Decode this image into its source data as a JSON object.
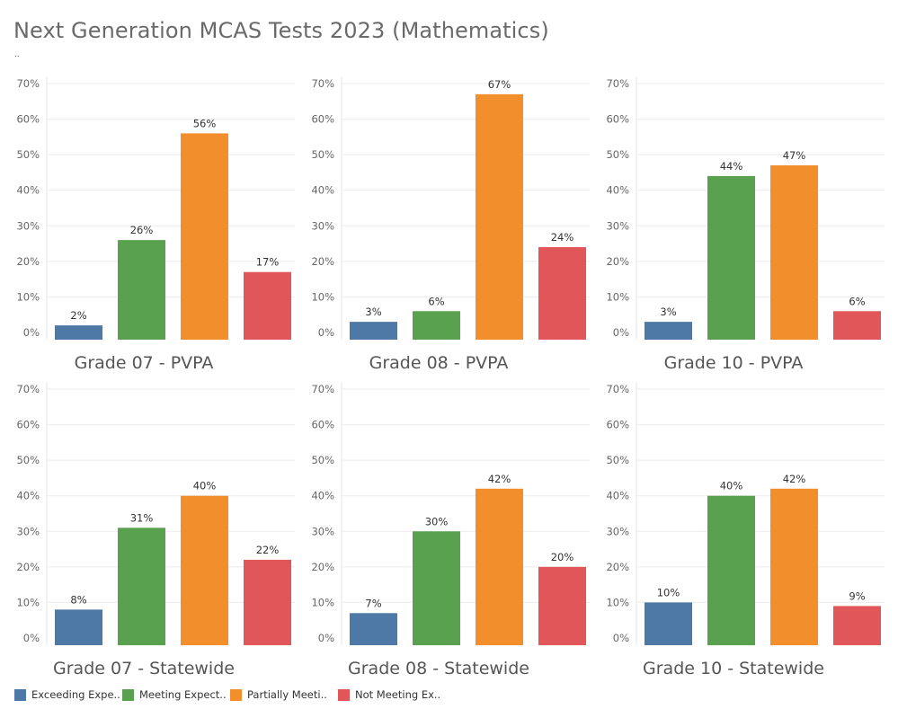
{
  "title": "Next Generation MCAS Tests 2023 (Mathematics)",
  "subtitle": "..",
  "colors": {
    "exceeding": "#4e79a7",
    "meeting": "#59a14f",
    "partially": "#f28e2b",
    "not_meeting": "#e15759",
    "grid": "#ebebeb",
    "axis_text": "#666666",
    "label_text": "#333333"
  },
  "legend": [
    {
      "label": "Exceeding Expe..",
      "color": "#4e79a7"
    },
    {
      "label": "Meeting Expect..",
      "color": "#59a14f"
    },
    {
      "label": "Partially Meeti..",
      "color": "#f28e2b"
    },
    {
      "label": "Not Meeting Ex..",
      "color": "#e15759"
    }
  ],
  "chart_data": [
    {
      "type": "bar",
      "title": "Grade 07 - PVPA",
      "categories": [
        "Exceeding Expe..",
        "Meeting Expect..",
        "Partially Meeti..",
        "Not Meeting Ex.."
      ],
      "values": [
        2,
        26,
        56,
        17
      ],
      "ylim": [
        0,
        70
      ],
      "yticks": [
        "0%",
        "10%",
        "20%",
        "30%",
        "40%",
        "50%",
        "60%",
        "70%"
      ]
    },
    {
      "type": "bar",
      "title": "Grade 08 - PVPA",
      "categories": [
        "Exceeding Expe..",
        "Meeting Expect..",
        "Partially Meeti..",
        "Not Meeting Ex.."
      ],
      "values": [
        3,
        6,
        67,
        24
      ],
      "ylim": [
        0,
        70
      ],
      "yticks": [
        "0%",
        "10%",
        "20%",
        "30%",
        "40%",
        "50%",
        "60%",
        "70%"
      ]
    },
    {
      "type": "bar",
      "title": "Grade 10 - PVPA",
      "categories": [
        "Exceeding Expe..",
        "Meeting Expect..",
        "Partially Meeti..",
        "Not Meeting Ex.."
      ],
      "values": [
        3,
        44,
        47,
        6
      ],
      "ylim": [
        0,
        70
      ],
      "yticks": [
        "0%",
        "10%",
        "20%",
        "30%",
        "40%",
        "50%",
        "60%",
        "70%"
      ]
    },
    {
      "type": "bar",
      "title": "Grade 07 - Statewide",
      "categories": [
        "Exceeding Expe..",
        "Meeting Expect..",
        "Partially Meeti..",
        "Not Meeting Ex.."
      ],
      "values": [
        8,
        31,
        40,
        22
      ],
      "ylim": [
        0,
        70
      ],
      "yticks": [
        "0%",
        "10%",
        "20%",
        "30%",
        "40%",
        "50%",
        "60%",
        "70%"
      ]
    },
    {
      "type": "bar",
      "title": "Grade 08 - Statewide",
      "categories": [
        "Exceeding Expe..",
        "Meeting Expect..",
        "Partially Meeti..",
        "Not Meeting Ex.."
      ],
      "values": [
        7,
        30,
        42,
        20
      ],
      "ylim": [
        0,
        70
      ],
      "yticks": [
        "0%",
        "10%",
        "20%",
        "30%",
        "40%",
        "50%",
        "60%",
        "70%"
      ]
    },
    {
      "type": "bar",
      "title": "Grade 10 - Statewide",
      "categories": [
        "Exceeding Expe..",
        "Meeting Expect..",
        "Partially Meeti..",
        "Not Meeting Ex.."
      ],
      "values": [
        10,
        40,
        42,
        9
      ],
      "ylim": [
        0,
        70
      ],
      "yticks": [
        "0%",
        "10%",
        "20%",
        "30%",
        "40%",
        "50%",
        "60%",
        "70%"
      ]
    }
  ]
}
